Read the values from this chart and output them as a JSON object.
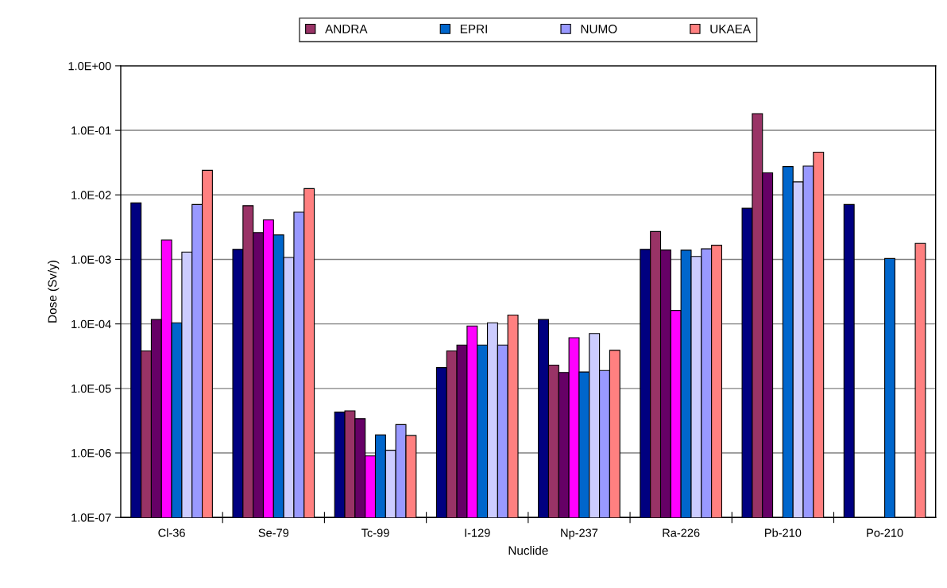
{
  "chart_data": {
    "type": "bar",
    "xlabel": "Nuclide",
    "ylabel": "Dose (Sv/y)",
    "categories": [
      "Cl-36",
      "Se-79",
      "Tc-99",
      "I-129",
      "Np-237",
      "Ra-226",
      "Pb-210",
      "Po-210"
    ],
    "series": [
      {
        "color": "#000080",
        "values": [
          0.0075,
          0.00143,
          4.3e-06,
          2.1e-05,
          0.000117,
          0.00143,
          0.0062,
          0.0071
        ]
      },
      {
        "name": "ANDRA",
        "color": "#993366",
        "values": [
          3.8e-05,
          0.0068,
          4.5e-06,
          3.8e-05,
          2.3e-05,
          0.0027,
          0.182,
          null
        ]
      },
      {
        "color": "#660066",
        "values": [
          0.000117,
          0.0026,
          3.4e-06,
          4.7e-05,
          1.77e-05,
          0.0014,
          0.022,
          null
        ]
      },
      {
        "color": "#ff00ff",
        "values": [
          0.002,
          0.0041,
          9e-07,
          9.3e-05,
          6.1e-05,
          0.000162,
          null,
          null
        ]
      },
      {
        "name": "EPRI",
        "color": "#0066cc",
        "values": [
          0.000104,
          0.0024,
          1.9e-06,
          4.7e-05,
          1.8e-05,
          0.00139,
          0.0275,
          0.00103
        ]
      },
      {
        "color": "#ccccff",
        "values": [
          0.0013,
          0.00107,
          1.1e-06,
          0.000104,
          7.1e-05,
          0.00111,
          0.0159,
          null
        ]
      },
      {
        "name": "NUMO",
        "color": "#9999ff",
        "values": [
          0.0071,
          0.0054,
          2.75e-06,
          4.7e-05,
          1.9e-05,
          0.00146,
          0.028,
          null
        ]
      },
      {
        "name": "UKAEA",
        "color": "#ff8080",
        "values": [
          0.024,
          0.0125,
          1.86e-06,
          0.000137,
          3.9e-05,
          0.00166,
          0.046,
          0.00177
        ]
      }
    ],
    "log": true,
    "ylim": [
      1e-07,
      1
    ],
    "yticks": [
      {
        "value": 1e-07,
        "label": "1.0E-07"
      },
      {
        "value": 1e-06,
        "label": "1.0E-06"
      },
      {
        "value": 1e-05,
        "label": "1.0E-05"
      },
      {
        "value": 0.0001,
        "label": "1.0E-04"
      },
      {
        "value": 0.001,
        "label": "1.0E-03"
      },
      {
        "value": 0.01,
        "label": "1.0E-02"
      },
      {
        "value": 0.1,
        "label": "1.0E-01"
      },
      {
        "value": 1,
        "label": "1.0E+00"
      }
    ],
    "grid": "y",
    "legend": "top"
  }
}
